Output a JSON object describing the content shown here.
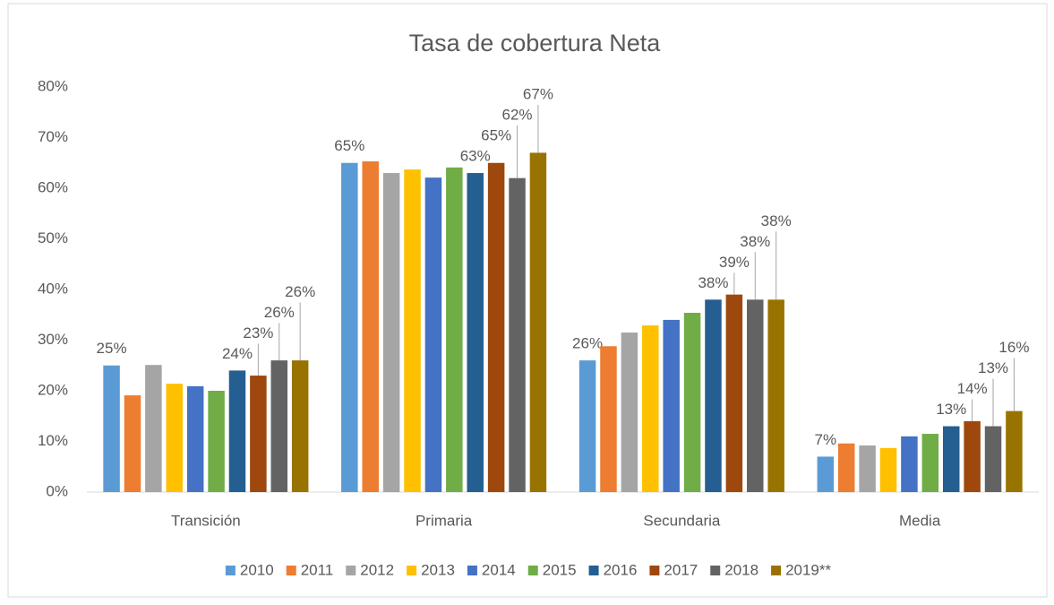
{
  "chart_data": {
    "type": "bar",
    "title": "Tasa de cobertura Neta",
    "categories": [
      "Transición",
      "Primaria",
      "Secundaria",
      "Media"
    ],
    "ylim": [
      0,
      80
    ],
    "yticks": [
      {
        "value": 0,
        "label": "0%"
      },
      {
        "value": 10,
        "label": "10%"
      },
      {
        "value": 20,
        "label": "20%"
      },
      {
        "value": 30,
        "label": "30%"
      },
      {
        "value": 40,
        "label": "40%"
      },
      {
        "value": 50,
        "label": "50%"
      },
      {
        "value": 60,
        "label": "60%"
      },
      {
        "value": 70,
        "label": "70%"
      },
      {
        "value": 80,
        "label": "80%"
      }
    ],
    "grid": false,
    "legend": "bottom",
    "series": [
      {
        "name": "2010",
        "color": "#5b9bd5",
        "values": [
          25,
          65,
          26,
          7
        ],
        "value_labels": [
          "25%",
          "65%",
          "26%",
          "7%"
        ]
      },
      {
        "name": "2011",
        "color": "#ed7d31",
        "values": [
          19.1,
          65.3,
          28.8,
          9.6
        ]
      },
      {
        "name": "2012",
        "color": "#a5a5a5",
        "values": [
          25.1,
          63,
          31.5,
          9.2
        ]
      },
      {
        "name": "2013",
        "color": "#ffc000",
        "values": [
          21.4,
          63.7,
          32.9,
          8.7
        ]
      },
      {
        "name": "2014",
        "color": "#4472c4",
        "values": [
          20.9,
          62.1,
          34,
          11
        ]
      },
      {
        "name": "2015",
        "color": "#70ad47",
        "values": [
          20,
          64.1,
          35.4,
          11.5
        ]
      },
      {
        "name": "2016",
        "color": "#255e91",
        "values": [
          24,
          63,
          38,
          13
        ],
        "value_labels": [
          "24%",
          "63%",
          "38%",
          "13%"
        ]
      },
      {
        "name": "2017",
        "color": "#9e480e",
        "values": [
          23,
          65,
          39,
          14
        ],
        "value_labels": [
          "23%",
          "65%",
          "39%",
          "14%"
        ]
      },
      {
        "name": "2018",
        "color": "#636363",
        "values": [
          26,
          62,
          38,
          13
        ],
        "value_labels": [
          "26%",
          "62%",
          "38%",
          "13%"
        ]
      },
      {
        "name": "2019**",
        "color": "#997300",
        "values": [
          26,
          67,
          38,
          16
        ],
        "value_labels": [
          "26%",
          "67%",
          "38%",
          "16%"
        ]
      }
    ]
  }
}
